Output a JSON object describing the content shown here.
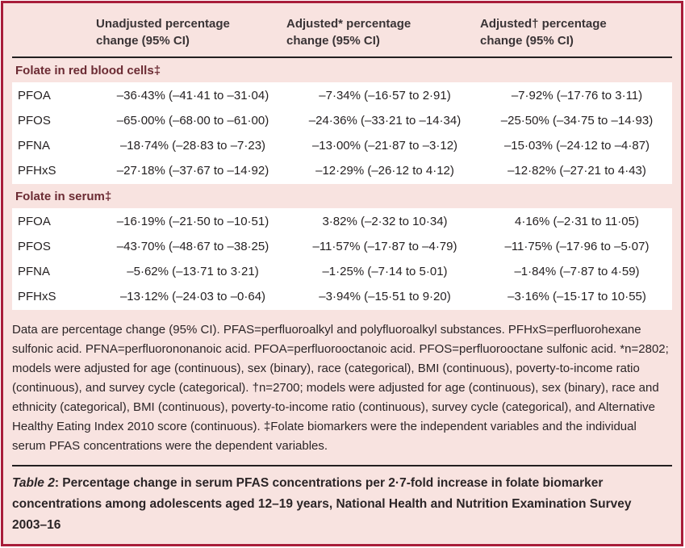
{
  "panel": {
    "colors": {
      "border": "#A81D3A",
      "background": "#F8E3E0",
      "row_background": "#FFFFFF",
      "rule": "#231F20",
      "section_header_text": "#6B2B33",
      "body_text": "#231F20"
    }
  },
  "table": {
    "column_headers": [
      "Unadjusted percentage change (95% CI)",
      "Adjusted* percentage change (95% CI)",
      "Adjusted† percentage change (95% CI)"
    ],
    "sections": [
      {
        "header": "Folate in red blood cells‡",
        "rows": [
          {
            "label": "PFOA",
            "values": [
              "–36·43% (–41·41 to –31·04)",
              "–7·34% (–16·57 to 2·91)",
              "–7·92% (–17·76 to 3·11)"
            ]
          },
          {
            "label": "PFOS",
            "values": [
              "–65·00% (–68·00 to –61·00)",
              "–24·36% (–33·21 to –14·34)",
              "–25·50% (–34·75 to –14·93)"
            ]
          },
          {
            "label": "PFNA",
            "values": [
              "–18·74% (–28·83 to –7·23)",
              "–13·00% (–21·87 to –3·12)",
              "–15·03% (–24·12 to –4·87)"
            ]
          },
          {
            "label": "PFHxS",
            "values": [
              "–27·18% (–37·67 to –14·92)",
              "–12·29% (–26·12 to 4·12)",
              "–12·82% (–27·21 to 4·43)"
            ]
          }
        ]
      },
      {
        "header": "Folate in serum‡",
        "rows": [
          {
            "label": "PFOA",
            "values": [
              "–16·19% (–21·50 to –10·51)",
              "3·82% (–2·32 to 10·34)",
              "4·16% (–2·31 to 11·05)"
            ]
          },
          {
            "label": "PFOS",
            "values": [
              "–43·70% (–48·67 to –38·25)",
              "–11·57% (–17·87 to –4·79)",
              "–11·75% (–17·96 to –5·07)"
            ]
          },
          {
            "label": "PFNA",
            "values": [
              "–5·62% (–13·71 to 3·21)",
              "–1·25% (–7·14 to 5·01)",
              "–1·84% (–7·87 to 4·59)"
            ]
          },
          {
            "label": "PFHxS",
            "values": [
              "–13·12% (–24·03 to –0·64)",
              "–3·94% (–15·51 to 9·20)",
              "–3·16% (–15·17 to 10·55)"
            ]
          }
        ]
      }
    ]
  },
  "footnote": "Data are percentage change (95% CI). PFAS=perfluoroalkyl and polyfluoroalkyl substances. PFHxS=perfluorohexane sulfonic acid. PFNA=perfluorononanoic acid. PFOA=perfluorooctanoic acid. PFOS=perfluorooctane sulfonic acid. *n=2802; models were adjusted for age (continuous), sex (binary), race (categorical), BMI (continuous), poverty-to-income ratio (continuous), and survey cycle (categorical). †n=2700; models were adjusted for age (continuous), sex (binary), race and ethnicity (categorical), BMI (continuous), poverty-to-income ratio (continuous), survey cycle (categorical), and Alternative Healthy Eating Index 2010 score (continuous). ‡Folate biomarkers were the independent variables and the individual serum PFAS concentrations were the dependent variables.",
  "caption": {
    "label": "Table 2",
    "text": ": Percentage change in serum PFAS concentrations per 2·7-fold increase in folate biomarker concentrations among adolescents aged 12–19 years, National Health and Nutrition Examination Survey 2003–16"
  }
}
